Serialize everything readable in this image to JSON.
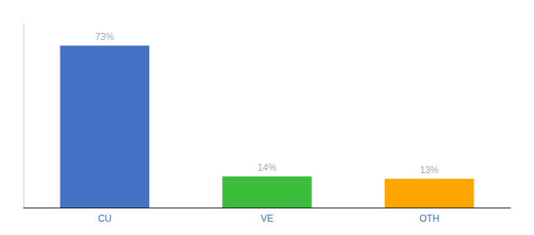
{
  "chart_data": {
    "type": "bar",
    "categories": [
      "CU",
      "VE",
      "OTH"
    ],
    "values": [
      73,
      14,
      13
    ],
    "value_labels": [
      "73%",
      "14%",
      "13%"
    ],
    "colors": [
      "#4472C4",
      "#3DBD3D",
      "#FFA500"
    ],
    "ylim": [
      0,
      83
    ],
    "data_labels": true,
    "tick_labels": "x",
    "grid": false
  }
}
